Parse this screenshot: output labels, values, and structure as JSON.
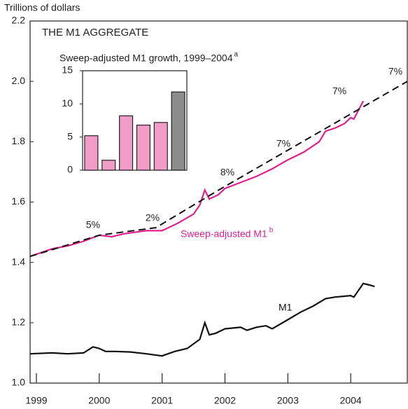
{
  "chart_data": [
    {
      "type": "line",
      "title": "THE M1 AGGREGATE",
      "y_label": "Trillions of dollars",
      "xlim": [
        1998.9,
        2004.9
      ],
      "xticks": [
        1999,
        2000,
        2001,
        2002,
        2003,
        2004
      ],
      "ylim": [
        1.0,
        2.2
      ],
      "yticks": [
        {
          "value": 1.0,
          "label": "1.0"
        },
        {
          "value": 1.2,
          "label": "1.2"
        },
        {
          "value": 1.4,
          "label": "1.4"
        },
        {
          "value": 1.6,
          "label": "1.6"
        },
        {
          "value": 1.8,
          "label": "1.8"
        },
        {
          "value": 2.0,
          "label": "2.0"
        },
        {
          "value": 2.2,
          "label": "2.2"
        }
      ],
      "series": [
        {
          "name": "Sweep-adjusted M1",
          "footnote": "b",
          "color": "#e0208f",
          "x": [
            1998.9,
            1999.25,
            1999.5,
            1999.75,
            2000.0,
            2000.2,
            2000.4,
            2000.75,
            2001.0,
            2001.25,
            2001.5,
            2001.6,
            2001.68,
            2001.75,
            2001.9,
            2002.0,
            2002.25,
            2002.5,
            2002.75,
            2003.0,
            2003.25,
            2003.5,
            2003.6,
            2003.75,
            2003.9,
            2004.0,
            2004.05,
            2004.2
          ],
          "values": [
            1.42,
            1.445,
            1.455,
            1.47,
            1.49,
            1.485,
            1.495,
            1.505,
            1.505,
            1.53,
            1.56,
            1.59,
            1.64,
            1.61,
            1.625,
            1.645,
            1.665,
            1.685,
            1.71,
            1.74,
            1.765,
            1.8,
            1.835,
            1.845,
            1.86,
            1.88,
            1.875,
            1.935
          ]
        },
        {
          "name": "M1",
          "color": "#111111",
          "x": [
            1998.9,
            1999.25,
            1999.5,
            1999.75,
            1999.9,
            2000.0,
            2000.1,
            2000.25,
            2000.5,
            2000.75,
            2001.0,
            2001.2,
            2001.4,
            2001.6,
            2001.68,
            2001.75,
            2001.85,
            2002.0,
            2002.25,
            2002.35,
            2002.5,
            2002.65,
            2002.75,
            2003.0,
            2003.2,
            2003.4,
            2003.6,
            2003.75,
            2004.0,
            2004.05,
            2004.2,
            2004.3,
            2004.38
          ],
          "values": [
            1.097,
            1.1,
            1.097,
            1.1,
            1.12,
            1.115,
            1.105,
            1.105,
            1.103,
            1.097,
            1.09,
            1.105,
            1.115,
            1.145,
            1.2,
            1.16,
            1.165,
            1.18,
            1.185,
            1.175,
            1.185,
            1.19,
            1.18,
            1.21,
            1.235,
            1.255,
            1.28,
            1.285,
            1.29,
            1.285,
            1.33,
            1.325,
            1.32
          ]
        },
        {
          "color": "#111111",
          "dashed": true,
          "x": [
            1998.9,
            2000.0,
            2000.9,
            2001.9,
            2004.9
          ],
          "values": [
            1.42,
            1.49,
            1.515,
            1.64,
            2.0
          ]
        }
      ],
      "annotations": [
        "5%",
        "2%",
        "8%",
        "7%",
        "7%",
        "7%"
      ]
    },
    {
      "type": "bar",
      "title": "Sweep-adjusted M1 growth, 1999–2004",
      "footnote": "a",
      "categories": [
        null,
        null,
        null,
        null,
        null,
        null
      ],
      "values": [
        5.2,
        1.5,
        8.2,
        6.8,
        7.2,
        11.8
      ],
      "colors": [
        "#f29cc8",
        "#f29cc8",
        "#f29cc8",
        "#f29cc8",
        "#f29cc8",
        "#8c8c8c"
      ],
      "ylim": [
        0,
        15
      ],
      "yticks": [
        0,
        5,
        10,
        15
      ]
    }
  ]
}
